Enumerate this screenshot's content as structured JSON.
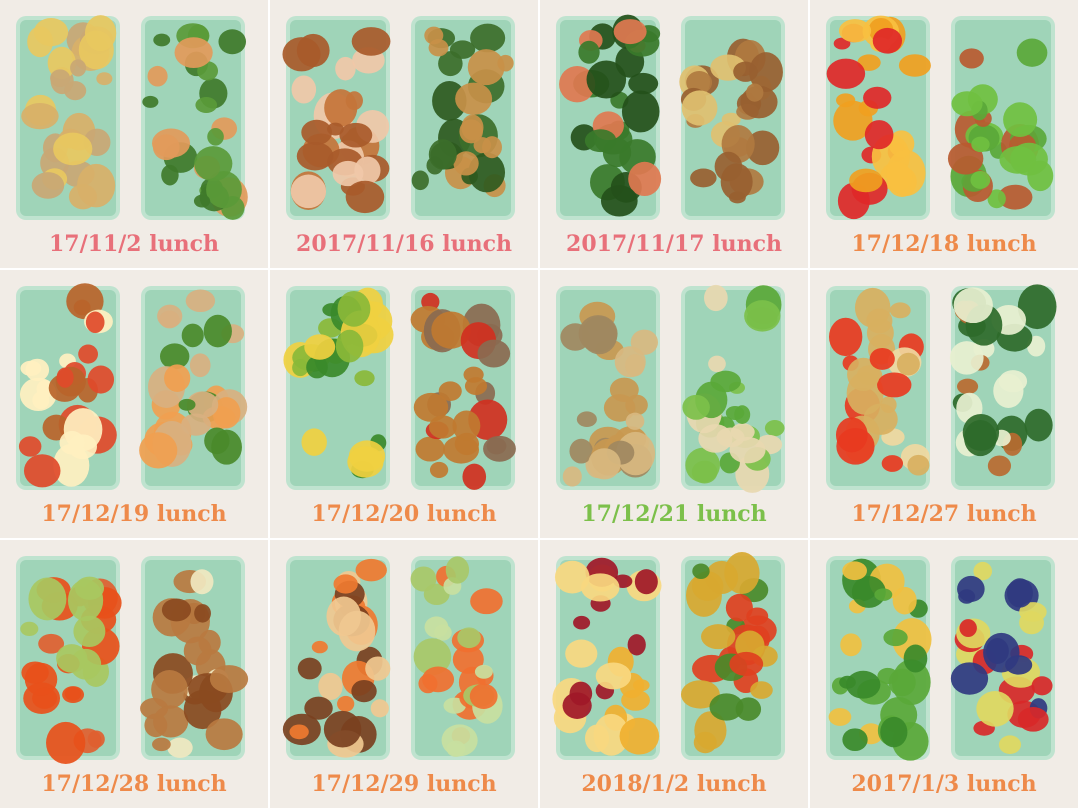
{
  "tiles": [
    {
      "caption": "17/11/2 lunch",
      "color": "#e8707a"
    },
    {
      "caption": "2017/11/16 lunch",
      "color": "#e8707a"
    },
    {
      "caption": "2017/11/17 lunch",
      "color": "#e8707a"
    },
    {
      "caption": "17/12/18 lunch",
      "color": "#ee8a4a"
    },
    {
      "caption": "17/12/19 lunch",
      "color": "#ee8a4a"
    },
    {
      "caption": "17/12/20 lunch",
      "color": "#ee8a4a"
    },
    {
      "caption": "17/12/21 lunch",
      "color": "#7cc04a"
    },
    {
      "caption": "17/12/27 lunch",
      "color": "#ee8a4a"
    },
    {
      "caption": "17/12/28 lunch",
      "color": "#ee8a4a"
    },
    {
      "caption": "17/12/29 lunch",
      "color": "#ee8a4a"
    },
    {
      "caption": "2018/1/2 lunch",
      "color": "#ee8a4a"
    },
    {
      "caption": "2017/1/3 lunch",
      "color": "#ee8a4a"
    }
  ]
}
